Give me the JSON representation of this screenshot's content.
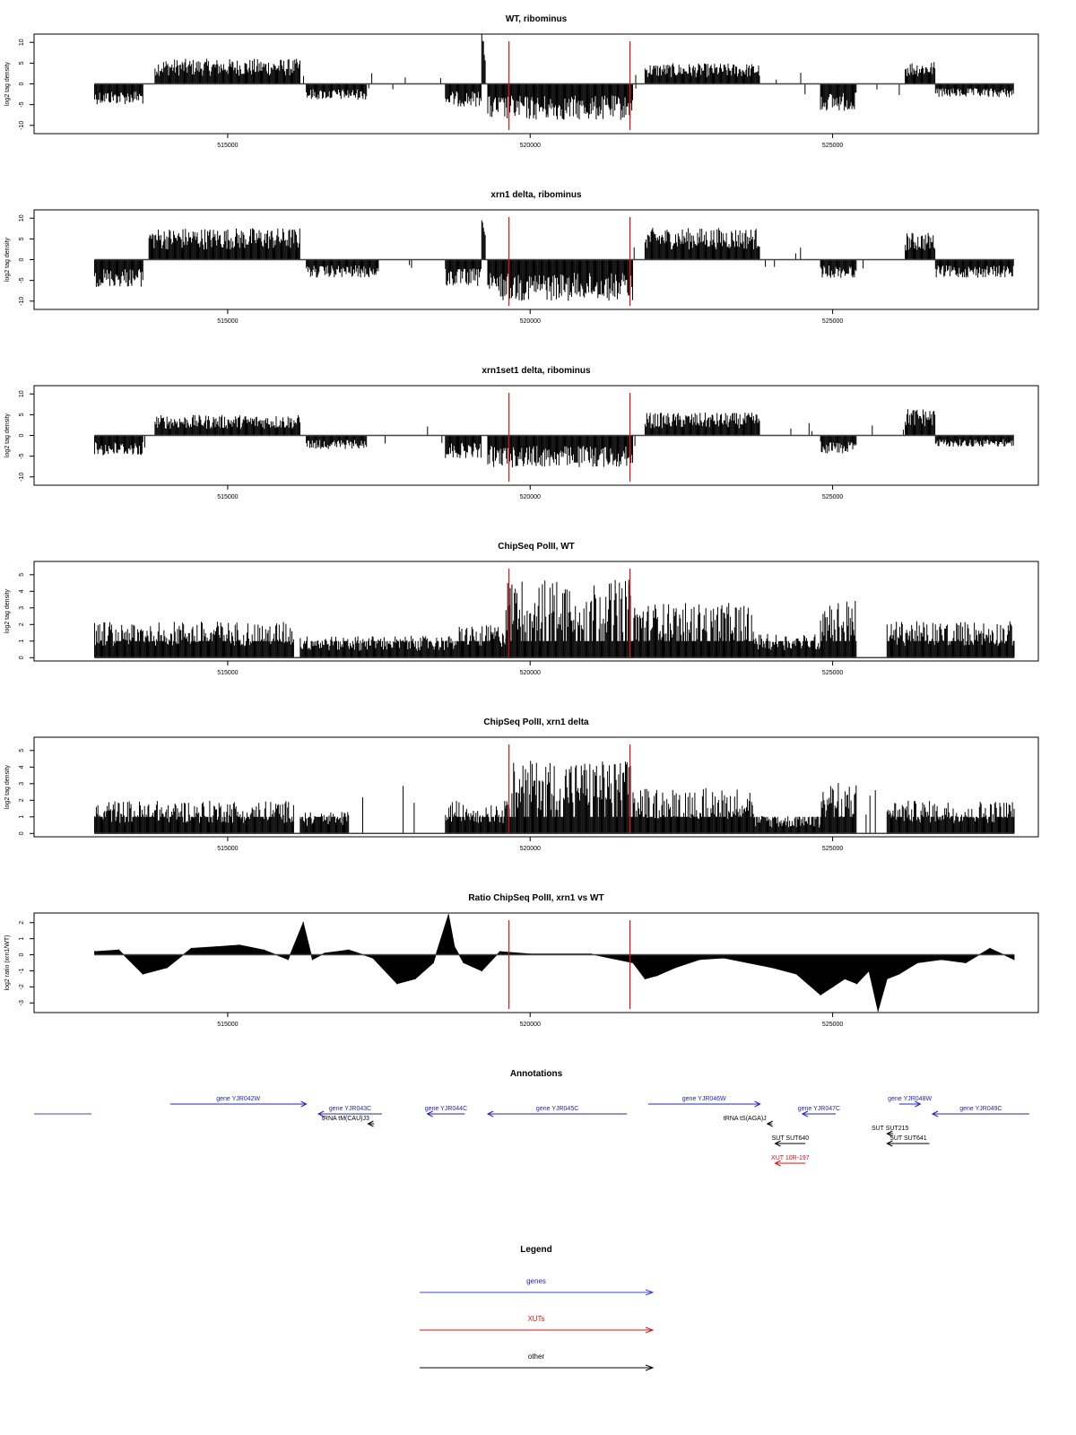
{
  "chart_data": [
    {
      "type": "bar",
      "title": "WT, ribominus",
      "ylabel": "log2 tag density",
      "yticks": [
        10,
        5,
        0,
        -5,
        -10
      ],
      "ylim": [
        -12,
        12
      ],
      "xticks": [
        515000,
        520000,
        525000
      ],
      "xlim": [
        511800,
        528400
      ],
      "red_lines": [
        519650,
        521650
      ],
      "regions": [
        {
          "x0": 512800,
          "x1": 513600,
          "v": -4.5
        },
        {
          "x0": 513800,
          "x1": 516200,
          "v": 5.5
        },
        {
          "x0": 516300,
          "x1": 517300,
          "v": -3.5
        },
        {
          "x0": 518600,
          "x1": 519200,
          "v": -5
        },
        {
          "x0": 519200,
          "x1": 519260,
          "v": 11
        },
        {
          "x0": 519300,
          "x1": 521700,
          "v": -8
        },
        {
          "x0": 521900,
          "x1": 523800,
          "v": 4.5
        },
        {
          "x0": 524800,
          "x1": 525400,
          "v": -6
        },
        {
          "x0": 526200,
          "x1": 526700,
          "v": 5
        },
        {
          "x0": 526700,
          "x1": 528000,
          "v": -3
        }
      ]
    },
    {
      "type": "bar",
      "title": "xrn1 delta, ribominus",
      "ylabel": "log2 tag density",
      "yticks": [
        10,
        5,
        0,
        -5,
        -10
      ],
      "ylim": [
        -12,
        12
      ],
      "xticks": [
        515000,
        520000,
        525000
      ],
      "xlim": [
        511800,
        528400
      ],
      "red_lines": [
        519650,
        521650
      ],
      "regions": [
        {
          "x0": 512800,
          "x1": 513600,
          "v": -6
        },
        {
          "x0": 513700,
          "x1": 516200,
          "v": 7
        },
        {
          "x0": 516300,
          "x1": 517500,
          "v": -4
        },
        {
          "x0": 518600,
          "x1": 519200,
          "v": -6
        },
        {
          "x0": 519200,
          "x1": 519260,
          "v": 9
        },
        {
          "x0": 519300,
          "x1": 521700,
          "v": -9
        },
        {
          "x0": 521900,
          "x1": 523800,
          "v": 7
        },
        {
          "x0": 524800,
          "x1": 525400,
          "v": -4
        },
        {
          "x0": 526200,
          "x1": 526700,
          "v": 6
        },
        {
          "x0": 526700,
          "x1": 528000,
          "v": -4
        }
      ]
    },
    {
      "type": "bar",
      "title": "xrn1set1 delta, ribominus",
      "ylabel": "log2 tag density",
      "yticks": [
        10,
        5,
        0,
        -5,
        -10
      ],
      "ylim": [
        -12,
        12
      ],
      "xticks": [
        515000,
        520000,
        525000
      ],
      "xlim": [
        511800,
        528400
      ],
      "red_lines": [
        519650,
        521650
      ],
      "regions": [
        {
          "x0": 512800,
          "x1": 513600,
          "v": -4.5
        },
        {
          "x0": 513800,
          "x1": 516200,
          "v": 4.5
        },
        {
          "x0": 516300,
          "x1": 517300,
          "v": -3
        },
        {
          "x0": 518600,
          "x1": 519200,
          "v": -5
        },
        {
          "x0": 519300,
          "x1": 521700,
          "v": -7
        },
        {
          "x0": 521900,
          "x1": 523800,
          "v": 5
        },
        {
          "x0": 524800,
          "x1": 525400,
          "v": -4
        },
        {
          "x0": 526200,
          "x1": 526700,
          "v": 6
        },
        {
          "x0": 526700,
          "x1": 528000,
          "v": -2.5
        }
      ]
    },
    {
      "type": "bar",
      "title": "ChipSeq PolII, WT",
      "ylabel": "log2 tag density",
      "yticks": [
        5,
        4,
        3,
        2,
        1,
        0
      ],
      "ylim": [
        -0.2,
        5.8
      ],
      "xticks": [
        515000,
        520000,
        525000
      ],
      "xlim": [
        511800,
        528400
      ],
      "red_lines": [
        519650,
        521650
      ],
      "regions": [
        {
          "x0": 512800,
          "x1": 516100,
          "v": 2
        },
        {
          "x0": 516200,
          "x1": 518800,
          "v": 1.2
        },
        {
          "x0": 518800,
          "x1": 519600,
          "v": 1.8
        },
        {
          "x0": 519600,
          "x1": 521700,
          "v": 4.3
        },
        {
          "x0": 521700,
          "x1": 523700,
          "v": 3
        },
        {
          "x0": 523700,
          "x1": 524800,
          "v": 1.3
        },
        {
          "x0": 524800,
          "x1": 525400,
          "v": 3.2
        },
        {
          "x0": 525900,
          "x1": 528000,
          "v": 2
        }
      ]
    },
    {
      "type": "bar",
      "title": "ChipSeq PolII, xrn1 delta",
      "ylabel": "log2 tag density",
      "yticks": [
        5,
        4,
        3,
        2,
        1,
        0
      ],
      "ylim": [
        -0.2,
        5.8
      ],
      "xticks": [
        515000,
        520000,
        525000
      ],
      "xlim": [
        511800,
        528400
      ],
      "red_lines": [
        519650,
        521650
      ],
      "regions": [
        {
          "x0": 512800,
          "x1": 516100,
          "v": 1.8
        },
        {
          "x0": 516200,
          "x1": 517000,
          "v": 1.2
        },
        {
          "x0": 518600,
          "x1": 519600,
          "v": 1.8
        },
        {
          "x0": 519600,
          "x1": 521700,
          "v": 4
        },
        {
          "x0": 521700,
          "x1": 523700,
          "v": 2.5
        },
        {
          "x0": 523700,
          "x1": 524800,
          "v": 1
        },
        {
          "x0": 524800,
          "x1": 525400,
          "v": 2.8
        },
        {
          "x0": 525900,
          "x1": 528000,
          "v": 1.8
        }
      ]
    },
    {
      "type": "area",
      "title": "Ratio ChipSeq PolII, xrn1 vs WT",
      "ylabel": "log2 ratio (xrn1/WT)",
      "yticks": [
        2,
        1,
        0,
        -1,
        -2,
        -3
      ],
      "ylim": [
        -3.6,
        2.6
      ],
      "xticks": [
        515000,
        520000,
        525000
      ],
      "xlim": [
        511800,
        528400
      ],
      "red_lines": [
        519650,
        521650
      ],
      "x": [
        512800,
        513200,
        513600,
        514000,
        514400,
        514800,
        515200,
        515600,
        516000,
        516250,
        516400,
        516600,
        517000,
        517400,
        517800,
        518100,
        518400,
        518650,
        518750,
        518900,
        519200,
        519500,
        520000,
        521000,
        521700,
        521900,
        522100,
        522400,
        522800,
        523200,
        523600,
        524000,
        524400,
        524800,
        525000,
        525200,
        525400,
        525600,
        525750,
        525900,
        526100,
        526400,
        526800,
        527200,
        527600,
        528000
      ],
      "values": [
        0.2,
        0.3,
        -1.2,
        -0.8,
        0.4,
        0.5,
        0.6,
        0.3,
        -0.3,
        2.0,
        -0.3,
        0.1,
        0.3,
        -0.2,
        -1.8,
        -1.5,
        -0.5,
        2.5,
        0.5,
        -0.5,
        -1.0,
        0.2,
        0.05,
        0.05,
        -0.5,
        -1.5,
        -1.3,
        -0.8,
        -0.3,
        -0.2,
        -0.5,
        -0.8,
        -1.2,
        -2.5,
        -2.0,
        -1.5,
        -1.8,
        -1.0,
        -3.5,
        -1.5,
        -1.2,
        -0.5,
        -0.3,
        -0.5,
        0.4,
        -0.3
      ]
    }
  ],
  "annotations": {
    "title": "Annotations",
    "items": [
      {
        "label": "",
        "x0": 511800,
        "x1": 512750,
        "y": 0,
        "dir": "none",
        "color": "#3b46e8"
      },
      {
        "label": "gene YJR042W",
        "x0": 514050,
        "x1": 516300,
        "y": -1,
        "dir": "right",
        "color": "#2121cc"
      },
      {
        "label": "gene YJR043C",
        "x0": 516500,
        "x1": 517550,
        "y": 0,
        "dir": "left",
        "color": "#2121cc"
      },
      {
        "label": "gene YJR044C",
        "x0": 518300,
        "x1": 518920,
        "y": 0,
        "dir": "left",
        "color": "#2121cc"
      },
      {
        "label": "gene YJR045C",
        "x0": 519300,
        "x1": 521600,
        "y": 0,
        "dir": "left",
        "color": "#2121cc"
      },
      {
        "label": "gene YJR046W",
        "x0": 521950,
        "x1": 523800,
        "y": -1,
        "dir": "right",
        "color": "#2121cc"
      },
      {
        "label": "gene YJR047C",
        "x0": 524500,
        "x1": 525050,
        "y": 0,
        "dir": "left",
        "color": "#2121cc"
      },
      {
        "label": "gene YJR048W",
        "x0": 526100,
        "x1": 526450,
        "y": -1,
        "dir": "right",
        "color": "#2121cc"
      },
      {
        "label": "gene YJR049C",
        "x0": 526650,
        "x1": 528250,
        "y": 0,
        "dir": "left",
        "color": "#2121cc"
      },
      {
        "label": "tRNA tM(CAU)J3",
        "x0": 517320,
        "x1": 517420,
        "y": 1,
        "dir": "left",
        "color": "#000000"
      },
      {
        "label": "tRNA tS(AGA)J",
        "x0": 523920,
        "x1": 524000,
        "y": 1,
        "dir": "left",
        "color": "#000000"
      },
      {
        "label": "SUT SUT215",
        "x0": 525900,
        "x1": 526000,
        "y": 2,
        "dir": "left",
        "color": "#000000"
      },
      {
        "label": "SUT SUT640",
        "x0": 524050,
        "x1": 524550,
        "y": 3,
        "dir": "left",
        "color": "#000000"
      },
      {
        "label": "SUT SUT641",
        "x0": 525900,
        "x1": 526600,
        "y": 3,
        "dir": "left",
        "color": "#000000"
      },
      {
        "label": "XUT 10R-197",
        "x0": 524050,
        "x1": 524550,
        "y": 5,
        "dir": "left",
        "color": "#e01010"
      }
    ]
  },
  "legend": {
    "title": "Legend",
    "items": [
      {
        "label": "genes",
        "color": "#3b46e8",
        "text_color": "#2121cc"
      },
      {
        "label": "XUTs",
        "color": "#e01010",
        "text_color": "#e01010"
      },
      {
        "label": "other",
        "color": "#000000",
        "text_color": "#000000"
      }
    ]
  }
}
